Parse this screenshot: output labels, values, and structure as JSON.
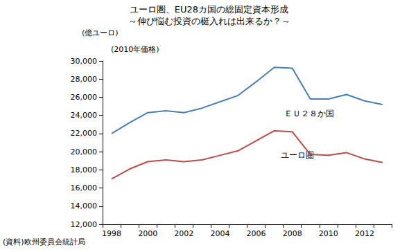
{
  "chart_data": {
    "type": "line",
    "title": "ユーロ圏、EU28カ国の総固定資本形成",
    "subtitle": "～伸び悩む投資の梃入れは出来るか？～",
    "y_label": "(億ユーロ)",
    "annotations": [
      "(2010年価格)",
      "(資料)欧州委員会統計局"
    ],
    "categories": [
      "1998",
      null,
      "2000",
      null,
      "2002",
      null,
      "2004",
      null,
      "2006",
      null,
      "2008",
      null,
      "2010",
      null,
      "2012",
      null
    ],
    "series": [
      {
        "name": "ＥＵ２８か国",
        "color": "#4a7ebb",
        "values": [
          22000,
          23200,
          24300,
          24500,
          24300,
          24800,
          25500,
          26200,
          27700,
          29300,
          29200,
          25800,
          25800,
          26300,
          25600,
          25200
        ]
      },
      {
        "name": "ユーロ圏",
        "color": "#be4b48",
        "values": [
          17000,
          18100,
          18900,
          19100,
          18900,
          19100,
          19600,
          20100,
          21200,
          22300,
          22200,
          19700,
          19600,
          19900,
          19200,
          18800
        ]
      }
    ],
    "ylim": [
      12000,
      30000
    ],
    "yticks": [
      {
        "value": 12000,
        "label": "12,000"
      },
      {
        "value": 14000,
        "label": "14,000"
      },
      {
        "value": 16000,
        "label": "16,000"
      },
      {
        "value": 18000,
        "label": "18,000"
      },
      {
        "value": 20000,
        "label": "20,000"
      },
      {
        "value": 22000,
        "label": "22,000"
      },
      {
        "value": 24000,
        "label": "24,000"
      },
      {
        "value": 26000,
        "label": "26,000"
      },
      {
        "value": 28000,
        "label": "28,000"
      },
      {
        "value": 30000,
        "label": "30,000"
      }
    ],
    "grid": false
  }
}
